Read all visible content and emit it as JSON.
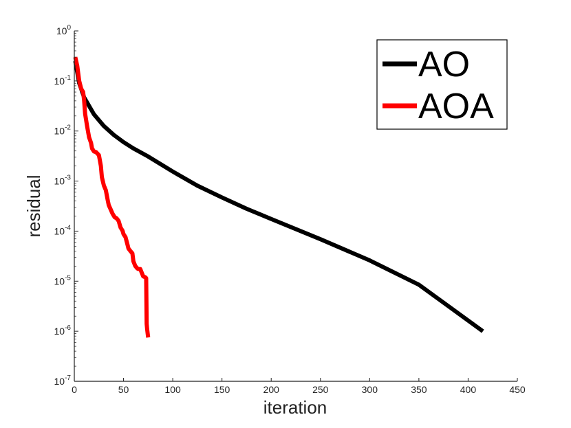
{
  "chart_data": {
    "type": "line",
    "xlabel": "iteration",
    "ylabel": "residual",
    "xlim": [
      0,
      450
    ],
    "ylim": [
      1e-07,
      1
    ],
    "yscale": "log",
    "grid": false,
    "legend_position": "top-right",
    "x_ticks": [
      "0",
      "50",
      "100",
      "150",
      "200",
      "250",
      "300",
      "350",
      "400",
      "450"
    ],
    "y_ticks": [
      {
        "base": "10",
        "exp": "0",
        "value": 1
      },
      {
        "base": "10",
        "exp": "-1",
        "value": 0.1
      },
      {
        "base": "10",
        "exp": "-2",
        "value": 0.01
      },
      {
        "base": "10",
        "exp": "-3",
        "value": 0.001
      },
      {
        "base": "10",
        "exp": "-4",
        "value": 0.0001
      },
      {
        "base": "10",
        "exp": "-5",
        "value": 1e-05
      },
      {
        "base": "10",
        "exp": "-6",
        "value": 1e-06
      },
      {
        "base": "10",
        "exp": "-7",
        "value": 1e-07
      }
    ],
    "series": [
      {
        "name": "AO",
        "color": "#000000",
        "x": [
          1,
          5,
          10,
          20,
          30,
          40,
          50,
          60,
          75,
          100,
          125,
          150,
          175,
          200,
          250,
          300,
          350,
          415
        ],
        "y": [
          0.25,
          0.09,
          0.047,
          0.0215,
          0.0126,
          0.0084,
          0.006,
          0.0045,
          0.0031,
          0.00155,
          0.00081,
          0.00047,
          0.00028,
          0.000175,
          6.9e-05,
          2.6e-05,
          8.5e-06,
          1e-06
        ]
      },
      {
        "name": "AOA",
        "color": "#ff0000",
        "x": [
          1,
          3,
          5,
          7,
          9,
          10,
          11,
          13,
          15,
          17,
          18,
          20,
          22,
          25,
          27,
          28,
          30,
          32,
          34,
          35,
          37,
          39,
          41,
          43,
          45,
          47,
          49,
          50,
          52,
          54,
          55,
          57,
          59,
          60,
          62,
          64,
          65,
          67,
          70,
          72,
          73,
          73.5,
          74,
          75
        ],
        "y": [
          0.3,
          0.2,
          0.1,
          0.07,
          0.06,
          0.04,
          0.022,
          0.0125,
          0.0075,
          0.0058,
          0.0045,
          0.0039,
          0.0038,
          0.0033,
          0.002,
          0.0012,
          0.00082,
          0.00066,
          0.00041,
          0.00033,
          0.00027,
          0.00022,
          0.00019,
          0.00018,
          0.00016,
          0.000118,
          0.000102,
          8.7e-05,
          7.6e-05,
          5.4e-05,
          4.5e-05,
          4e-05,
          3.6e-05,
          2.5e-05,
          2e-05,
          1.8e-05,
          1.75e-05,
          1.75e-05,
          1.25e-05,
          1.2e-05,
          1.15e-05,
          1.4e-06,
          1.1e-06,
          7.5e-07
        ]
      }
    ]
  }
}
